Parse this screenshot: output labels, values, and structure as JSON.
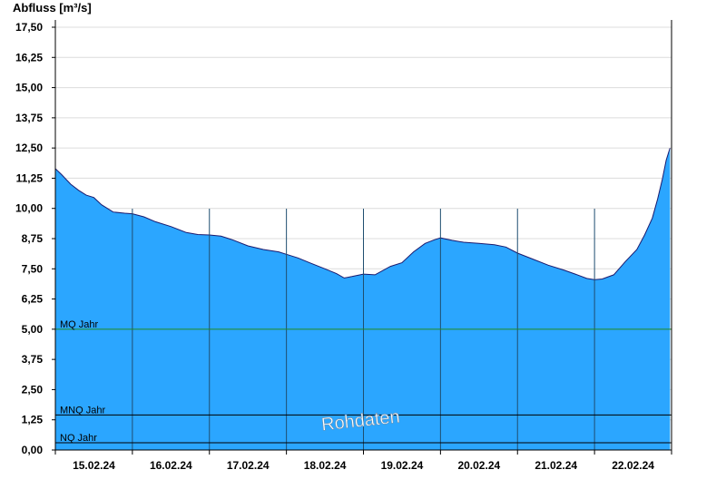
{
  "chart_data": {
    "type": "area",
    "ylabel": "Abfluss [m³/s]",
    "ylim": [
      0,
      17.5
    ],
    "xlim": [
      0,
      8
    ],
    "y_ticks": [
      0,
      1.25,
      2.5,
      3.75,
      5,
      6.25,
      7.5,
      8.75,
      10,
      11.25,
      12.5,
      13.75,
      15,
      16.25,
      17.5
    ],
    "y_tick_labels": [
      "0,00",
      "1,25",
      "2,50",
      "3,75",
      "5,00",
      "6,25",
      "7,50",
      "8,75",
      "10,00",
      "11,25",
      "12,50",
      "13,75",
      "15,00",
      "16,25",
      "17,50"
    ],
    "x_tick_labels": [
      "15.02.24",
      "16.02.24",
      "17.02.24",
      "18.02.24",
      "19.02.24",
      "20.02.24",
      "21.02.24",
      "22.02.24"
    ],
    "grid": true,
    "series": [
      {
        "x": [
          0,
          0.08,
          0.2,
          0.3,
          0.4,
          0.5,
          0.6,
          0.75,
          0.9,
          1.0,
          1.15,
          1.3,
          1.5,
          1.7,
          1.85,
          2.0,
          2.15,
          2.3,
          2.5,
          2.7,
          2.9,
          3.0,
          3.15,
          3.3,
          3.5,
          3.65,
          3.75,
          3.85,
          4.0,
          4.15,
          4.35,
          4.5,
          4.65,
          4.8,
          4.92,
          5.0,
          5.15,
          5.3,
          5.5,
          5.7,
          5.85,
          6.0,
          6.2,
          6.4,
          6.6,
          6.75,
          6.9,
          7.0,
          7.1,
          7.25,
          7.4,
          7.55,
          7.65,
          7.75,
          7.82,
          7.88,
          7.93,
          7.98
        ],
        "y": [
          11.65,
          11.4,
          11.0,
          10.75,
          10.55,
          10.45,
          10.15,
          9.85,
          9.8,
          9.78,
          9.65,
          9.45,
          9.25,
          9.0,
          8.92,
          8.9,
          8.85,
          8.7,
          8.45,
          8.3,
          8.2,
          8.1,
          7.95,
          7.75,
          7.5,
          7.3,
          7.12,
          7.18,
          7.28,
          7.25,
          7.6,
          7.75,
          8.2,
          8.55,
          8.7,
          8.78,
          8.68,
          8.6,
          8.55,
          8.5,
          8.4,
          8.15,
          7.9,
          7.65,
          7.45,
          7.28,
          7.1,
          7.05,
          7.08,
          7.25,
          7.8,
          8.3,
          8.9,
          9.6,
          10.4,
          11.2,
          12.0,
          12.5
        ],
        "color": "#2ba6ff"
      }
    ],
    "reference_lines": [
      {
        "label": "MQ Jahr",
        "value": 5.0,
        "color": "#228b22"
      },
      {
        "label": "MNQ Jahr",
        "value": 1.45,
        "color": "#000000"
      },
      {
        "label": "NQ Jahr",
        "value": 0.3,
        "color": "#000000"
      }
    ],
    "watermark": "Rohdaten",
    "colors": {
      "fill": "#2ba6ff",
      "outline": "#1a1a6e",
      "grid": "#dcdcdc",
      "day_line": "#1f4e70",
      "axis": "#000000"
    }
  }
}
